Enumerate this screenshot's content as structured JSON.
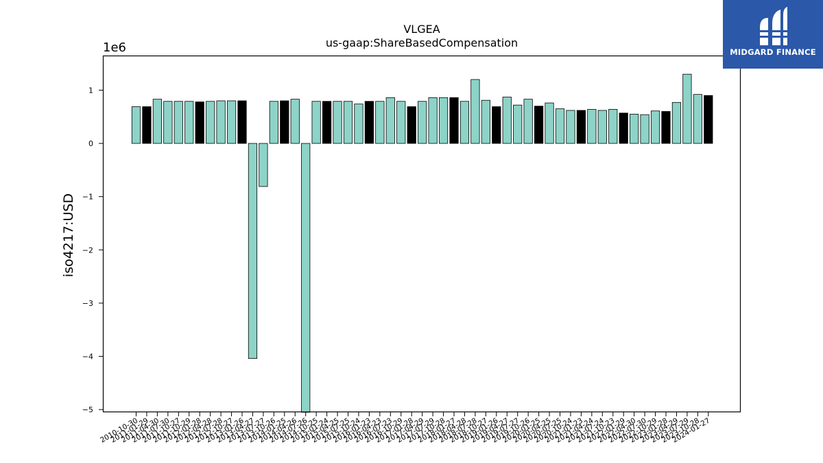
{
  "logo": {
    "text": "MIDGARD FINANCE",
    "color": "#2b58a8"
  },
  "chart_data": {
    "type": "bar",
    "title": "VLGEA",
    "subtitle": "us-gaap:ShareBasedCompensation",
    "ylabel": "iso4217:USD",
    "xlabel": "",
    "y_scale_label": "1e6",
    "y_ticks": [
      -5,
      -4,
      -3,
      -2,
      -1,
      0,
      1
    ],
    "ylim": [
      -5.05,
      1.65
    ],
    "grid": false,
    "colors": {
      "default": "#8dd3c7",
      "highlight": "#000000",
      "edge": "#000000"
    },
    "categories": [
      "2010-10-30",
      "2011-01-29",
      "2011-04-30",
      "2011-07-30",
      "2011-10-27",
      "2011-10-29",
      "2012-01-28",
      "2012-04-28",
      "2012-07-28",
      "2012-10-27",
      "2013-01-26",
      "2013-04-27",
      "2013-07-27",
      "2013-10-26",
      "2014-01-25",
      "2014-04-26",
      "2014-07-26",
      "2014-10-25",
      "2015-01-24",
      "2015-04-25",
      "2015-07-25",
      "2015-10-24",
      "2016-01-23",
      "2016-04-23",
      "2016-07-23",
      "2016-10-29",
      "2017-01-28",
      "2017-04-29",
      "2017-07-29",
      "2017-10-28",
      "2018-01-27",
      "2018-04-28",
      "2018-07-28",
      "2018-10-27",
      "2019-01-26",
      "2019-04-27",
      "2019-07-27",
      "2019-10-26",
      "2020-01-25",
      "2020-04-25",
      "2020-07-25",
      "2020-10-24",
      "2021-01-23",
      "2021-04-24",
      "2021-07-24",
      "2021-10-23",
      "2022-01-29",
      "2022-04-30",
      "2022-07-30",
      "2022-10-29",
      "2023-01-28",
      "2023-04-29",
      "2023-07-29",
      "2023-10-28",
      "2024-01-27"
    ],
    "series": [
      {
        "values": [
          0.69,
          0.69,
          0.83,
          0.79,
          0.79,
          0.79,
          0.78,
          0.79,
          0.8,
          0.8,
          0.8,
          -4.04,
          -0.81,
          0.79,
          0.8,
          0.83,
          -5.1,
          0.79,
          0.79,
          0.79,
          0.79,
          0.74,
          0.79,
          0.79,
          0.86,
          0.79,
          0.69,
          0.79,
          0.86,
          0.86,
          0.86,
          0.79,
          1.2,
          0.81,
          0.69,
          0.87,
          0.72,
          0.83,
          0.7,
          0.76,
          0.65,
          0.62,
          0.62,
          0.64,
          0.62,
          0.64,
          0.57,
          0.55,
          0.54,
          0.61,
          0.6,
          0.77,
          1.3,
          0.92,
          0.9
        ],
        "highlight": [
          false,
          true,
          false,
          false,
          false,
          false,
          true,
          false,
          false,
          false,
          true,
          false,
          false,
          false,
          true,
          false,
          false,
          false,
          true,
          false,
          false,
          false,
          true,
          false,
          false,
          false,
          true,
          false,
          false,
          false,
          true,
          false,
          false,
          false,
          true,
          false,
          false,
          false,
          true,
          false,
          false,
          false,
          true,
          false,
          false,
          false,
          true,
          false,
          false,
          false,
          true,
          false,
          false,
          false,
          true
        ]
      }
    ]
  }
}
